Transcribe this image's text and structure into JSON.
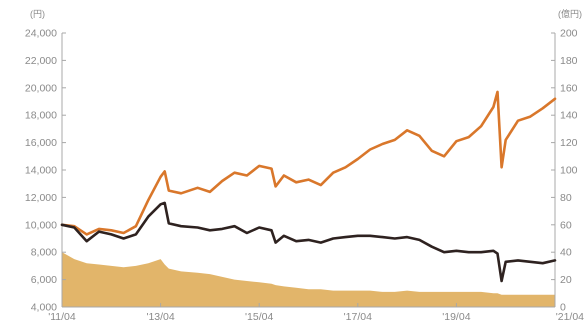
{
  "chart_data": {
    "type": "line",
    "title": "",
    "xlabel": "",
    "ylabel_left": "(円)",
    "ylabel_right": "(億円)",
    "grid": false,
    "legend": "none",
    "x_ticks": [
      "'11/04",
      "'13/04",
      "'15/04",
      "'17/04",
      "'19/04",
      "'21/04"
    ],
    "y_left": {
      "lim": [
        4000,
        24000
      ],
      "ticks": [
        "4,000",
        "6,000",
        "8,000",
        "10,000",
        "12,000",
        "14,000",
        "16,000",
        "18,000",
        "20,000",
        "22,000",
        "24,000"
      ]
    },
    "y_right": {
      "lim": [
        0,
        200
      ],
      "ticks": [
        "0",
        "20",
        "40",
        "60",
        "80",
        "100",
        "120",
        "140",
        "160",
        "180",
        "200"
      ]
    },
    "x": [
      "2011-04",
      "2011-07",
      "2011-10",
      "2012-01",
      "2012-04",
      "2012-07",
      "2012-10",
      "2013-01",
      "2013-04",
      "2013-05",
      "2013-06",
      "2013-09",
      "2014-01",
      "2014-04",
      "2014-07",
      "2014-10",
      "2015-01",
      "2015-04",
      "2015-07",
      "2015-08",
      "2015-10",
      "2016-01",
      "2016-04",
      "2016-07",
      "2016-10",
      "2017-01",
      "2017-04",
      "2017-07",
      "2017-10",
      "2018-01",
      "2018-04",
      "2018-07",
      "2018-10",
      "2019-01",
      "2019-04",
      "2019-07",
      "2019-10",
      "2020-01",
      "2020-02",
      "2020-03",
      "2020-04",
      "2020-07",
      "2020-10",
      "2021-01",
      "2021-04"
    ],
    "series": [
      {
        "role": "adjusted-nav",
        "axis": "left",
        "render": "line",
        "color": "#d9772b",
        "values": [
          10000,
          9900,
          9300,
          9700,
          9600,
          9400,
          9900,
          11800,
          13500,
          13900,
          12500,
          12300,
          12700,
          12400,
          13200,
          13800,
          13600,
          14300,
          14100,
          12800,
          13600,
          13100,
          13300,
          12900,
          13800,
          14200,
          14800,
          15500,
          15900,
          16200,
          16900,
          16500,
          15400,
          15000,
          16100,
          16400,
          17200,
          18600,
          19700,
          14200,
          16200,
          17600,
          17900,
          18500,
          19200
        ]
      },
      {
        "role": "nav",
        "axis": "left",
        "render": "line",
        "color": "#2e2220",
        "values": [
          10000,
          9800,
          8800,
          9500,
          9300,
          9000,
          9300,
          10600,
          11500,
          11600,
          10100,
          9900,
          9800,
          9600,
          9700,
          9900,
          9400,
          9800,
          9600,
          8700,
          9200,
          8800,
          8900,
          8700,
          9000,
          9100,
          9200,
          9200,
          9100,
          9000,
          9100,
          8900,
          8400,
          8000,
          8100,
          8000,
          8000,
          8100,
          7900,
          5900,
          7300,
          7400,
          7300,
          7200,
          7400
        ]
      },
      {
        "role": "net-assets",
        "axis": "right",
        "render": "area",
        "color": "#e2b56a",
        "values": [
          40,
          35,
          32,
          31,
          30,
          29,
          30,
          32,
          35,
          31,
          28,
          26,
          25,
          24,
          22,
          20,
          19,
          18,
          17,
          16,
          15,
          14,
          13,
          13,
          12,
          12,
          12,
          12,
          11,
          11,
          12,
          11,
          11,
          11,
          11,
          11,
          11,
          10,
          10,
          9,
          9,
          9,
          9,
          9,
          9
        ]
      }
    ]
  }
}
